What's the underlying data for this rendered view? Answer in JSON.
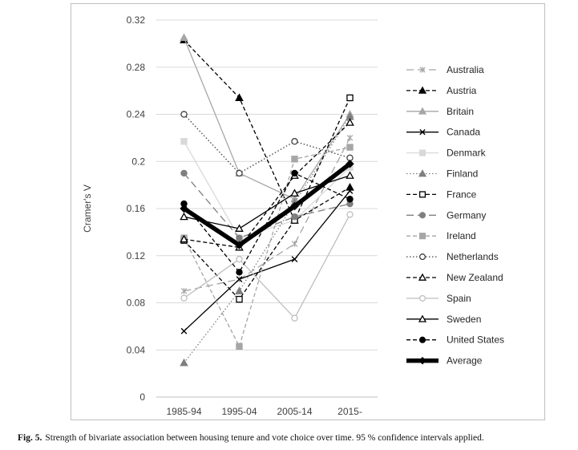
{
  "figure": {
    "label": "Fig. 5.",
    "caption": "Strength of bivariate association between housing tenure and vote choice over time. 95 % confidence intervals applied."
  },
  "chart_data": {
    "type": "line",
    "title": "",
    "xlabel": "",
    "ylabel": "Cramer's V",
    "categories": [
      "1985-94",
      "1995-04",
      "2005-14",
      "2015-"
    ],
    "ylim": [
      0,
      0.32
    ],
    "yticks": [
      0,
      0.04,
      0.08,
      0.12,
      0.16,
      0.2,
      0.24,
      0.28,
      0.32
    ],
    "ytick_labels": [
      "0",
      "0.04",
      "0.08",
      "0.12",
      "0.16",
      "0.2",
      "0.24",
      "0.28",
      "0.32"
    ],
    "grid": "horizontal",
    "legend": "right",
    "series": [
      {
        "name": "Australia",
        "values": [
          0.09,
          0.1,
          0.13,
          0.22
        ],
        "color": "#a6a6a6",
        "dash": "long-dash",
        "marker": "asterisk",
        "width": "thin"
      },
      {
        "name": "Austria",
        "values": [
          0.303,
          0.254,
          0.15,
          0.178
        ],
        "color": "#000000",
        "dash": "dash",
        "marker": "triangle-filled",
        "width": "thin"
      },
      {
        "name": "Britain",
        "values": [
          0.305,
          0.19,
          0.168,
          0.24
        ],
        "color": "#a6a6a6",
        "dash": "solid",
        "marker": "triangle-filled",
        "width": "thin"
      },
      {
        "name": "Canada",
        "values": [
          0.056,
          0.1,
          0.117,
          0.175
        ],
        "color": "#000000",
        "dash": "solid",
        "marker": "x",
        "width": "thin"
      },
      {
        "name": "Denmark",
        "values": [
          0.217,
          0.135,
          0.15,
          0.195
        ],
        "color": "#d9d9d9",
        "dash": "solid",
        "marker": "square-filled",
        "width": "thin"
      },
      {
        "name": "Finland",
        "values": [
          0.029,
          0.09,
          0.165,
          0.238
        ],
        "color": "#7f7f7f",
        "dash": "dot",
        "marker": "triangle-filled",
        "width": "thin"
      },
      {
        "name": "France",
        "values": [
          0.133,
          0.083,
          0.15,
          0.254
        ],
        "color": "#000000",
        "dash": "dash",
        "marker": "square-open",
        "width": "thin"
      },
      {
        "name": "Germany",
        "values": [
          0.19,
          0.135,
          0.153,
          0.164
        ],
        "color": "#7f7f7f",
        "dash": "long-dash",
        "marker": "circle-filled",
        "width": "thin"
      },
      {
        "name": "Ireland",
        "values": [
          0.135,
          0.043,
          0.202,
          0.212
        ],
        "color": "#a6a6a6",
        "dash": "dash",
        "marker": "square-filled",
        "width": "thin"
      },
      {
        "name": "Netherlands",
        "values": [
          0.24,
          0.19,
          0.217,
          0.203
        ],
        "color": "#404040",
        "dash": "dot",
        "marker": "circle-open",
        "width": "thin"
      },
      {
        "name": "New Zealand",
        "values": [
          0.134,
          0.127,
          0.188,
          0.233
        ],
        "color": "#000000",
        "dash": "dash",
        "marker": "triangle-open",
        "width": "thin"
      },
      {
        "name": "Spain",
        "values": [
          0.084,
          0.117,
          0.067,
          0.155
        ],
        "color": "#bfbfbf",
        "dash": "solid",
        "marker": "circle-open",
        "width": "thin"
      },
      {
        "name": "Sweden",
        "values": [
          0.153,
          0.143,
          0.173,
          0.188
        ],
        "color": "#000000",
        "dash": "solid",
        "marker": "triangle-open",
        "width": "thin"
      },
      {
        "name": "United States",
        "values": [
          0.164,
          0.106,
          0.19,
          0.168
        ],
        "color": "#000000",
        "dash": "dash",
        "marker": "circle-filled",
        "width": "thin"
      },
      {
        "name": "Average",
        "values": [
          0.16,
          0.129,
          0.162,
          0.198
        ],
        "color": "#000000",
        "dash": "solid",
        "marker": "diamond-filled",
        "width": "thick"
      }
    ]
  }
}
